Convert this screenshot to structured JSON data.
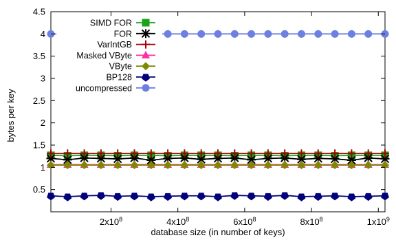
{
  "chart_data": {
    "type": "line",
    "title": "",
    "xlabel": "database size (in number of keys)",
    "ylabel": "bytes per key",
    "xlim": [
      20000000,
      1020000000
    ],
    "ylim": [
      0,
      4.5
    ],
    "x_ticks": [
      {
        "value": 200000000,
        "label": "2x10",
        "exp": "8"
      },
      {
        "value": 400000000,
        "label": "4x10",
        "exp": "8"
      },
      {
        "value": 600000000,
        "label": "6x10",
        "exp": "8"
      },
      {
        "value": 800000000,
        "label": "8x10",
        "exp": "8"
      },
      {
        "value": 1000000000,
        "label": "1x10",
        "exp": "9"
      }
    ],
    "y_ticks": [
      {
        "value": 0.5,
        "label": "0.5"
      },
      {
        "value": 1,
        "label": "1"
      },
      {
        "value": 1.5,
        "label": "1.5"
      },
      {
        "value": 2,
        "label": "2"
      },
      {
        "value": 2.5,
        "label": "2.5"
      },
      {
        "value": 3,
        "label": "3"
      },
      {
        "value": 3.5,
        "label": "3.5"
      },
      {
        "value": 4,
        "label": "4"
      },
      {
        "value": 4.5,
        "label": "4.5"
      }
    ],
    "grid": false,
    "legend_position": "top-left",
    "x": [
      20000000,
      70000000,
      120000000,
      170000000,
      220000000,
      270000000,
      320000000,
      370000000,
      420000000,
      470000000,
      520000000,
      570000000,
      620000000,
      670000000,
      720000000,
      770000000,
      820000000,
      870000000,
      920000000,
      970000000,
      1020000000
    ],
    "series": [
      {
        "name": "SIMD FOR",
        "color": "#1aa31a",
        "marker": "square",
        "values": [
          1.27,
          1.26,
          1.27,
          1.27,
          1.26,
          1.27,
          1.27,
          1.26,
          1.27,
          1.27,
          1.27,
          1.26,
          1.27,
          1.27,
          1.26,
          1.27,
          1.27,
          1.26,
          1.27,
          1.27,
          1.27
        ]
      },
      {
        "name": "FOR",
        "color": "#000000",
        "marker": "star",
        "values": [
          1.2,
          1.17,
          1.21,
          1.2,
          1.19,
          1.21,
          1.16,
          1.2,
          1.21,
          1.18,
          1.2,
          1.21,
          1.17,
          1.2,
          1.21,
          1.18,
          1.2,
          1.19,
          1.16,
          1.21,
          1.19
        ]
      },
      {
        "name": "VarIntGB",
        "color": "#a50000",
        "marker": "plus",
        "values": [
          1.31,
          1.31,
          1.31,
          1.31,
          1.31,
          1.31,
          1.31,
          1.31,
          1.31,
          1.31,
          1.31,
          1.31,
          1.31,
          1.31,
          1.31,
          1.31,
          1.31,
          1.31,
          1.31,
          1.31,
          1.31
        ]
      },
      {
        "name": "Masked VByte",
        "color": "#ff2fa2",
        "marker": "triangle",
        "values": [
          1.06,
          1.06,
          1.06,
          1.06,
          1.06,
          1.06,
          1.06,
          1.06,
          1.06,
          1.06,
          1.06,
          1.06,
          1.06,
          1.06,
          1.06,
          1.06,
          1.06,
          1.06,
          1.06,
          1.06,
          1.06
        ]
      },
      {
        "name": "VByte",
        "color": "#7c8a00",
        "marker": "diamond",
        "values": [
          1.05,
          1.05,
          1.05,
          1.05,
          1.05,
          1.05,
          1.05,
          1.05,
          1.05,
          1.05,
          1.05,
          1.05,
          1.05,
          1.05,
          1.05,
          1.05,
          1.05,
          1.05,
          1.05,
          1.05,
          1.05
        ]
      },
      {
        "name": "BP128",
        "color": "#00007a",
        "marker": "pentagon",
        "values": [
          0.36,
          0.34,
          0.36,
          0.37,
          0.35,
          0.36,
          0.34,
          0.35,
          0.36,
          0.36,
          0.34,
          0.37,
          0.36,
          0.35,
          0.37,
          0.34,
          0.35,
          0.36,
          0.34,
          0.35,
          0.36
        ]
      },
      {
        "name": "uncompressed",
        "color": "#6d7fe0",
        "marker": "circle",
        "values": [
          4,
          4,
          4,
          4,
          4,
          4,
          4,
          4,
          4,
          4,
          4,
          4,
          4,
          4,
          4,
          4,
          4,
          4,
          4,
          4,
          4
        ]
      }
    ]
  }
}
